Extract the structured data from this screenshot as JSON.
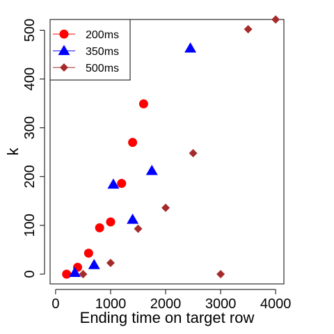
{
  "chart_data": {
    "type": "scatter",
    "xlabel": "Ending time on target row",
    "ylabel": "k",
    "xlim": [
      -100,
      4150
    ],
    "ylim": [
      -20,
      522
    ],
    "xticks": [
      0,
      1000,
      2000,
      3000,
      4000
    ],
    "yticks": [
      0,
      100,
      200,
      300,
      400,
      500
    ],
    "grid": false,
    "legend_position": "top-left",
    "series": [
      {
        "name": "200ms",
        "marker": "circle",
        "color": "#ff0000",
        "points": [
          [
            200,
            0
          ],
          [
            400,
            14
          ],
          [
            600,
            43
          ],
          [
            800,
            95
          ],
          [
            1000,
            107
          ],
          [
            1200,
            186
          ],
          [
            1400,
            270
          ],
          [
            1600,
            349
          ]
        ]
      },
      {
        "name": "350ms",
        "marker": "triangle",
        "color": "#0000ff",
        "points": [
          [
            350,
            3
          ],
          [
            700,
            19
          ],
          [
            1050,
            184
          ],
          [
            1400,
            112
          ],
          [
            1750,
            212
          ],
          [
            2450,
            463
          ]
        ]
      },
      {
        "name": "500ms",
        "marker": "diamond",
        "color": "#a52a2a",
        "points": [
          [
            500,
            0
          ],
          [
            1000,
            23
          ],
          [
            1500,
            93
          ],
          [
            2000,
            136
          ],
          [
            2500,
            248
          ],
          [
            3000,
            0
          ],
          [
            3500,
            502
          ],
          [
            4000,
            522
          ]
        ]
      }
    ]
  }
}
